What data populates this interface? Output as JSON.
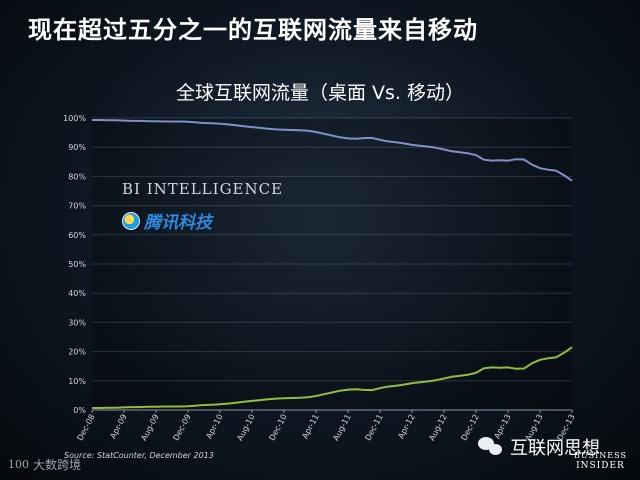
{
  "headline": "现在超过五分之一的互联网流量来自移动",
  "chart_data": {
    "type": "line",
    "title": "全球互联网流量（桌面 Vs. 移动）",
    "xlabel": "",
    "ylabel": "",
    "ylim": [
      0,
      100
    ],
    "y_ticks": [
      "0%",
      "10%",
      "20%",
      "30%",
      "40%",
      "50%",
      "60%",
      "70%",
      "80%",
      "90%",
      "100%"
    ],
    "x_tick_labels": [
      "Dec-08",
      "Apr-09",
      "Aug-09",
      "Dec-09",
      "Apr-10",
      "Aug-10",
      "Dec-10",
      "Apr-11",
      "Aug-11",
      "Dec-11",
      "Apr-12",
      "Aug-12",
      "Dec-12",
      "Apr-13",
      "Aug-13",
      "Dec-13"
    ],
    "x_tick_index": [
      0,
      4,
      8,
      12,
      16,
      20,
      24,
      28,
      32,
      36,
      40,
      44,
      48,
      52,
      56,
      60
    ],
    "x": [
      "Dec-08",
      "Jan-09",
      "Feb-09",
      "Mar-09",
      "Apr-09",
      "May-09",
      "Jun-09",
      "Jul-09",
      "Aug-09",
      "Sep-09",
      "Oct-09",
      "Nov-09",
      "Dec-09",
      "Jan-10",
      "Feb-10",
      "Mar-10",
      "Apr-10",
      "May-10",
      "Jun-10",
      "Jul-10",
      "Aug-10",
      "Sep-10",
      "Oct-10",
      "Nov-10",
      "Dec-10",
      "Jan-11",
      "Feb-11",
      "Mar-11",
      "Apr-11",
      "May-11",
      "Jun-11",
      "Jul-11",
      "Aug-11",
      "Sep-11",
      "Oct-11",
      "Nov-11",
      "Dec-11",
      "Jan-12",
      "Feb-12",
      "Mar-12",
      "Apr-12",
      "May-12",
      "Jun-12",
      "Jul-12",
      "Aug-12",
      "Sep-12",
      "Oct-12",
      "Nov-12",
      "Dec-12",
      "Jan-13",
      "Feb-13",
      "Mar-13",
      "Apr-13",
      "May-13",
      "Jun-13",
      "Jul-13",
      "Aug-13",
      "Sep-13",
      "Oct-13",
      "Nov-13",
      "Dec-13"
    ],
    "series": [
      {
        "color": "#7f8fc8",
        "values": [
          99.3,
          99.3,
          99.2,
          99.2,
          99.1,
          99.0,
          99.0,
          98.9,
          98.9,
          98.8,
          98.8,
          98.8,
          98.7,
          98.5,
          98.3,
          98.2,
          98.0,
          97.8,
          97.5,
          97.2,
          96.9,
          96.6,
          96.3,
          96.1,
          96.0,
          95.9,
          95.8,
          95.6,
          95.2,
          94.6,
          94.0,
          93.4,
          93.0,
          92.9,
          93.1,
          93.2,
          92.5,
          92.0,
          91.7,
          91.3,
          90.8,
          90.5,
          90.2,
          89.8,
          89.2,
          88.6,
          88.3,
          87.9,
          87.3,
          85.7,
          85.4,
          85.5,
          85.4,
          85.9,
          85.8,
          84.0,
          82.8,
          82.3,
          82.0,
          80.4,
          78.5
        ]
      },
      {
        "color": "#8fbf3a",
        "values": [
          0.7,
          0.7,
          0.8,
          0.8,
          0.9,
          1.0,
          1.0,
          1.1,
          1.1,
          1.2,
          1.2,
          1.2,
          1.3,
          1.5,
          1.7,
          1.8,
          2.0,
          2.2,
          2.5,
          2.8,
          3.1,
          3.4,
          3.7,
          3.9,
          4.0,
          4.1,
          4.2,
          4.4,
          4.8,
          5.4,
          6.0,
          6.6,
          7.0,
          7.1,
          6.9,
          6.8,
          7.5,
          8.0,
          8.3,
          8.7,
          9.2,
          9.5,
          9.8,
          10.2,
          10.8,
          11.4,
          11.7,
          12.1,
          12.7,
          14.3,
          14.6,
          14.5,
          14.6,
          14.1,
          14.2,
          16.0,
          17.2,
          17.7,
          18.0,
          19.6,
          21.5
        ]
      }
    ]
  },
  "source": "Source: StatCounter, December 2013",
  "overlay": {
    "bi_intelligence": "BI INTELLIGENCE",
    "tencent": "腾讯科技"
  },
  "footer": {
    "wechat_name": "互联网思想",
    "bi_line1": "BUSINESS",
    "bi_line2": "INSIDER",
    "watermark_text": "大数跨境",
    "watermark_logo": "100"
  }
}
